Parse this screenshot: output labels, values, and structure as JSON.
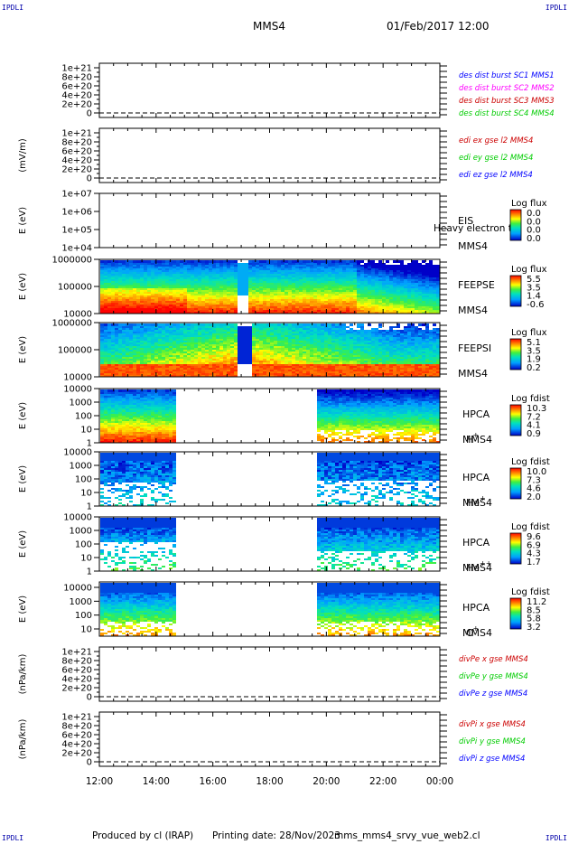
{
  "header": {
    "spacecraft": "MMS4",
    "datetime": "01/Feb/2017 12:00"
  },
  "corner_marks": {
    "tl": "IPDLI",
    "tr": "IPDLI",
    "bl": "IPDLI",
    "br": "IPDLI"
  },
  "footer": {
    "produced_by": "Produced by cl (IRAP)",
    "printing_date": "Printing date: 28/Nov/2023",
    "script": "mms_mms4_srvy_vue_web2.cl"
  },
  "chart_data": {
    "type": "multi-panel time series / spectrogram stack",
    "x_ticks": [
      "12:00",
      "14:00",
      "16:00",
      "18:00",
      "20:00",
      "22:00",
      "00:00"
    ],
    "colors": {
      "red": "#ff0000",
      "magenta": "#ff00ff",
      "blue": "#0000ff",
      "green": "#00cc00",
      "darkred": "#cc0000"
    },
    "panels": [
      {
        "kind": "line",
        "ylabel": "",
        "yticks": [
          "1e+21",
          "8e+20",
          "6e+20",
          "4e+20",
          "2e+20",
          "0"
        ],
        "legend": [
          {
            "text": "des dist burst SC1 MMS1",
            "color": "#0000ff"
          },
          {
            "text": "des dist burst SC2 MMS2",
            "color": "#ff00ff"
          },
          {
            "text": "des dist burst SC3 MMS3",
            "color": "#cc0000"
          },
          {
            "text": "des dist burst SC4 MMS4",
            "color": "#00cc00"
          }
        ]
      },
      {
        "kind": "line",
        "ylabel": "(mV/m)",
        "yticks": [
          "1e+21",
          "8e+20",
          "6e+20",
          "4e+20",
          "2e+20",
          "0"
        ],
        "legend": [
          {
            "text": "edi ex gse l2 MMS4",
            "color": "#cc0000"
          },
          {
            "text": "edi ey gse l2 MMS4",
            "color": "#00cc00"
          },
          {
            "text": "edi ez gse l2 MMS4",
            "color": "#0000ff"
          }
        ]
      },
      {
        "kind": "spec_empty",
        "ylabel": "E (eV)",
        "yticks": [
          "1e+07",
          "1e+06",
          "1e+05",
          "1e+04"
        ],
        "label": "EIS",
        "label2": "MMS4",
        "overlay": "Heavy electron to",
        "cb_title": "Log flux",
        "cb_values": [
          "0.0",
          "0.0",
          "0.0",
          "0.0"
        ]
      },
      {
        "kind": "spec",
        "style": "feepse",
        "ylabel": "E (eV)",
        "yticks": [
          "1000000",
          "100000",
          "10000"
        ],
        "label": "FEEPSE",
        "label2": "MMS4",
        "cb_title": "Log flux",
        "cb_values": [
          "5.5",
          "3.5",
          "1.4",
          "-0.6"
        ]
      },
      {
        "kind": "spec",
        "style": "feepsi",
        "ylabel": "E (eV)",
        "yticks": [
          "1000000",
          "100000",
          "10000"
        ],
        "label": "FEEPSI",
        "label2": "MMS4",
        "cb_title": "Log flux",
        "cb_values": [
          "5.1",
          "3.5",
          "1.9",
          "0.2"
        ]
      },
      {
        "kind": "spec",
        "style": "h",
        "ylabel": "E (eV)",
        "yticks": [
          "10000",
          "1000",
          "100",
          "10",
          "1"
        ],
        "label": "HPCA",
        "label2": "MMS4",
        "species": "H",
        "sup": "+",
        "cb_title": "Log fdist",
        "cb_values": [
          "10.3",
          "7.2",
          "4.1",
          "0.9"
        ]
      },
      {
        "kind": "spec",
        "style": "he",
        "ylabel": "E (eV)",
        "yticks": [
          "10000",
          "1000",
          "100",
          "10",
          "1"
        ],
        "label": "HPCA",
        "label2": "MMS4",
        "species": "He",
        "sup": "+",
        "cb_title": "Log fdist",
        "cb_values": [
          "10.0",
          "7.3",
          "4.6",
          "2.0"
        ]
      },
      {
        "kind": "spec",
        "style": "hepp",
        "ylabel": "E (eV)",
        "yticks": [
          "10000",
          "1000",
          "100",
          "10",
          "1"
        ],
        "label": "HPCA",
        "label2": "MMS4",
        "species": "He",
        "sup": "++",
        "cb_title": "Log fdist",
        "cb_values": [
          "9.6",
          "6.9",
          "4.3",
          "1.7"
        ]
      },
      {
        "kind": "spec",
        "style": "o",
        "ylabel": "E (eV)",
        "yticks": [
          "10000",
          "1000",
          "100",
          "10"
        ],
        "label": "HPCA",
        "label2": "MMS4",
        "species": "O",
        "sup": "+",
        "cb_title": "Log fdist",
        "cb_values": [
          "11.2",
          "8.5",
          "5.8",
          "3.2"
        ]
      },
      {
        "kind": "line",
        "ylabel": "(nPa/km)",
        "yticks": [
          "1e+21",
          "8e+20",
          "6e+20",
          "4e+20",
          "2e+20",
          "0"
        ],
        "legend": [
          {
            "text": "divPe x gse MMS4",
            "color": "#cc0000"
          },
          {
            "text": "divPe y gse MMS4",
            "color": "#00cc00"
          },
          {
            "text": "divPe z gse MMS4",
            "color": "#0000ff"
          }
        ]
      },
      {
        "kind": "line",
        "ylabel": "(nPa/km)",
        "yticks": [
          "1e+21",
          "8e+20",
          "6e+20",
          "4e+20",
          "2e+20",
          "0"
        ],
        "legend": [
          {
            "text": "divPi x gse MMS4",
            "color": "#cc0000"
          },
          {
            "text": "divPi y gse MMS4",
            "color": "#00cc00"
          },
          {
            "text": "divPi z gse MMS4",
            "color": "#0000ff"
          }
        ]
      }
    ]
  }
}
